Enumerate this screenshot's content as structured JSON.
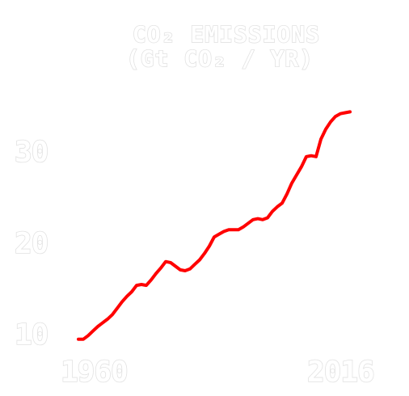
{
  "chart_data": {
    "type": "line",
    "title_line1": "CO₂ EMISSIONS",
    "title_line2": "(Gt CO₂ / YR)",
    "xlabel": "",
    "ylabel": "",
    "xlim": [
      1960,
      2016
    ],
    "ylim": [
      10,
      30
    ],
    "x_ticks": [
      "1960",
      "2016"
    ],
    "y_ticks": [
      "10",
      "20",
      "30"
    ],
    "grid": false,
    "line_color": "#ff0000",
    "series": [
      {
        "x": [
          1960,
          1961,
          1962,
          1963,
          1964,
          1965,
          1966,
          1967,
          1968,
          1969,
          1970,
          1971,
          1972,
          1973,
          1974,
          1975,
          1976,
          1977,
          1978,
          1979,
          1980,
          1981,
          1982,
          1983,
          1984,
          1985,
          1986,
          1987,
          1988,
          1989,
          1990,
          1991,
          1992,
          1993,
          1994,
          1995,
          1996,
          1997,
          1998,
          1999,
          2000,
          2001,
          2002,
          2003,
          2004,
          2005,
          2006,
          2007,
          2008,
          2009,
          2010,
          2011,
          2012,
          2013,
          2014,
          2015,
          2016
        ],
        "y": [
          9.4,
          9.4,
          9.8,
          10.3,
          10.8,
          11.2,
          11.6,
          12.1,
          12.8,
          13.5,
          14.1,
          14.6,
          15.3,
          15.4,
          15.3,
          15.9,
          16.6,
          17.2,
          17.9,
          17.8,
          17.4,
          17.0,
          16.9,
          17.1,
          17.6,
          18.1,
          18.8,
          19.6,
          20.6,
          20.9,
          21.2,
          21.4,
          21.4,
          21.4,
          21.7,
          22.1,
          22.5,
          22.6,
          22.5,
          22.7,
          23.4,
          23.9,
          24.3,
          25.3,
          26.5,
          27.4,
          28.3,
          29.4,
          29.5,
          29.4,
          31.3,
          32.4,
          33.2,
          33.8,
          34.1,
          34.2,
          34.3
        ]
      }
    ]
  }
}
